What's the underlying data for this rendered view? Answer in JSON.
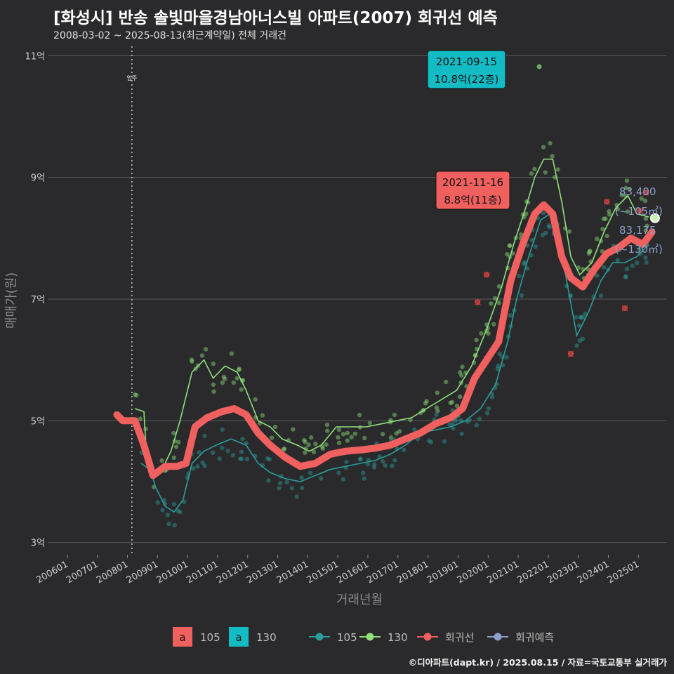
{
  "title": "[화성시] 반송 솔빛마을경남아너스빌 아파트(2007) 회귀선 예측",
  "subtitle": "2008-03-02 ~ 2025-08-13(최근계약일) 전체 거래건",
  "footer": "©디아파트(dapt.kr) / 2025.08.15 / 자료=국토교통부 실거래가",
  "colors": {
    "background": "#2a2a2c",
    "grid": "#5a5a5a",
    "series_105": "#2a9d9a",
    "series_130": "#8ee07a",
    "regression": "#f0605f",
    "prediction": "#8aa0c8",
    "label_105": "#f0605f",
    "label_130": "#13bcc4"
  },
  "chart_data": {
    "type": "line",
    "xlabel": "거래년월",
    "ylabel": "매매가(원)",
    "x_ticks": [
      "200601",
      "200701",
      "200801",
      "200901",
      "201001",
      "201101",
      "201201",
      "201301",
      "201401",
      "201501",
      "201601",
      "201701",
      "201801",
      "201901",
      "202001",
      "202101",
      "202201",
      "202301",
      "202401",
      "202501"
    ],
    "y_ticks": [
      "3억",
      "5억",
      "7억",
      "9억",
      "11억"
    ],
    "y_tick_values": [
      3,
      5,
      7,
      9,
      11
    ],
    "ylim": [
      2.8,
      11.2
    ],
    "xlim": [
      2005.4,
      2026.0
    ],
    "move_in": {
      "year": 2008.2,
      "label": "입주"
    },
    "series": [
      {
        "name": "130",
        "type": "line",
        "points": [
          [
            2008.3,
            5.2
          ],
          [
            2008.6,
            5.15
          ],
          [
            2008.7,
            4.3
          ],
          [
            2008.9,
            4.1
          ],
          [
            2009.2,
            4.2
          ],
          [
            2009.5,
            4.5
          ],
          [
            2009.8,
            5.0
          ],
          [
            2010.2,
            5.8
          ],
          [
            2010.6,
            6.0
          ],
          [
            2010.9,
            5.7
          ],
          [
            2011.3,
            5.9
          ],
          [
            2011.7,
            5.8
          ],
          [
            2012.0,
            5.5
          ],
          [
            2012.4,
            5.0
          ],
          [
            2012.8,
            4.9
          ],
          [
            2013.2,
            4.7
          ],
          [
            2013.7,
            4.6
          ],
          [
            2014.1,
            4.5
          ],
          [
            2014.5,
            4.6
          ],
          [
            2015.0,
            4.9
          ],
          [
            2015.5,
            4.9
          ],
          [
            2016.0,
            4.9
          ],
          [
            2016.5,
            4.95
          ],
          [
            2017.0,
            5.0
          ],
          [
            2017.5,
            5.05
          ],
          [
            2018.0,
            5.2
          ],
          [
            2018.5,
            5.35
          ],
          [
            2019.0,
            5.5
          ],
          [
            2019.5,
            5.9
          ],
          [
            2020.0,
            6.5
          ],
          [
            2020.5,
            7.2
          ],
          [
            2020.9,
            7.9
          ],
          [
            2021.3,
            8.5
          ],
          [
            2021.6,
            9.0
          ],
          [
            2021.9,
            9.3
          ],
          [
            2022.2,
            9.3
          ],
          [
            2022.5,
            8.6
          ],
          [
            2022.8,
            7.7
          ],
          [
            2023.1,
            7.4
          ],
          [
            2023.5,
            7.6
          ],
          [
            2023.9,
            8.1
          ],
          [
            2024.3,
            8.5
          ],
          [
            2024.7,
            8.7
          ],
          [
            2025.0,
            8.4
          ],
          [
            2025.4,
            8.35
          ]
        ]
      },
      {
        "name": "105",
        "type": "line",
        "points": [
          [
            2008.5,
            4.3
          ],
          [
            2008.8,
            4.2
          ],
          [
            2009.0,
            3.9
          ],
          [
            2009.3,
            3.6
          ],
          [
            2009.6,
            3.5
          ],
          [
            2009.9,
            3.7
          ],
          [
            2010.2,
            4.3
          ],
          [
            2010.6,
            4.5
          ],
          [
            2011.0,
            4.6
          ],
          [
            2011.5,
            4.7
          ],
          [
            2012.0,
            4.6
          ],
          [
            2012.4,
            4.3
          ],
          [
            2012.8,
            4.15
          ],
          [
            2013.3,
            4.05
          ],
          [
            2013.8,
            4.0
          ],
          [
            2014.3,
            4.1
          ],
          [
            2014.8,
            4.2
          ],
          [
            2015.3,
            4.25
          ],
          [
            2015.8,
            4.3
          ],
          [
            2016.3,
            4.35
          ],
          [
            2016.8,
            4.45
          ],
          [
            2017.3,
            4.6
          ],
          [
            2017.8,
            4.8
          ],
          [
            2018.3,
            4.85
          ],
          [
            2018.8,
            4.9
          ],
          [
            2019.3,
            5.0
          ],
          [
            2019.8,
            5.2
          ],
          [
            2020.3,
            5.6
          ],
          [
            2020.7,
            6.3
          ],
          [
            2021.0,
            7.0
          ],
          [
            2021.4,
            7.7
          ],
          [
            2021.8,
            8.3
          ],
          [
            2022.1,
            8.4
          ],
          [
            2022.4,
            8.0
          ],
          [
            2022.7,
            7.2
          ],
          [
            2023.0,
            6.4
          ],
          [
            2023.4,
            6.8
          ],
          [
            2023.8,
            7.3
          ],
          [
            2024.2,
            7.6
          ],
          [
            2024.6,
            7.6
          ],
          [
            2025.0,
            7.7
          ],
          [
            2025.4,
            7.9
          ]
        ]
      },
      {
        "name": "회귀선",
        "type": "line",
        "points": [
          [
            2007.7,
            5.1
          ],
          [
            2007.9,
            5.0
          ],
          [
            2008.3,
            5.0
          ],
          [
            2008.6,
            4.6
          ],
          [
            2008.9,
            4.1
          ],
          [
            2009.3,
            4.25
          ],
          [
            2009.7,
            4.25
          ],
          [
            2010.0,
            4.3
          ],
          [
            2010.3,
            4.9
          ],
          [
            2010.7,
            5.05
          ],
          [
            2011.2,
            5.15
          ],
          [
            2011.6,
            5.2
          ],
          [
            2012.0,
            5.1
          ],
          [
            2012.4,
            4.8
          ],
          [
            2012.8,
            4.6
          ],
          [
            2013.3,
            4.4
          ],
          [
            2013.8,
            4.25
          ],
          [
            2014.3,
            4.3
          ],
          [
            2014.8,
            4.45
          ],
          [
            2015.3,
            4.5
          ],
          [
            2015.8,
            4.52
          ],
          [
            2016.3,
            4.55
          ],
          [
            2016.8,
            4.6
          ],
          [
            2017.3,
            4.7
          ],
          [
            2017.8,
            4.8
          ],
          [
            2018.3,
            4.95
          ],
          [
            2018.8,
            5.05
          ],
          [
            2019.2,
            5.2
          ],
          [
            2019.6,
            5.7
          ],
          [
            2020.0,
            6.0
          ],
          [
            2020.4,
            6.3
          ],
          [
            2020.8,
            7.3
          ],
          [
            2021.2,
            7.9
          ],
          [
            2021.6,
            8.4
          ],
          [
            2021.9,
            8.55
          ],
          [
            2022.2,
            8.4
          ],
          [
            2022.5,
            7.7
          ],
          [
            2022.8,
            7.35
          ],
          [
            2023.2,
            7.2
          ],
          [
            2023.6,
            7.5
          ],
          [
            2024.0,
            7.75
          ],
          [
            2024.4,
            7.85
          ],
          [
            2024.8,
            8.0
          ],
          [
            2025.2,
            7.9
          ],
          [
            2025.5,
            8.1
          ]
        ]
      }
    ],
    "outliers": [
      [
        2019.7,
        6.95
      ],
      [
        2020.0,
        7.4
      ],
      [
        2022.8,
        6.1
      ],
      [
        2024.0,
        8.6
      ],
      [
        2024.6,
        6.85
      ],
      [
        2025.1,
        8.45
      ],
      [
        2025.3,
        8.75
      ]
    ],
    "callouts": [
      {
        "date": "2021-09-15",
        "value": "10.8억(22층)",
        "series": "130",
        "x": 2021.7,
        "y": 10.8
      },
      {
        "date": "2021-11-16",
        "value": "8.8억(11층)",
        "series": "105",
        "x": 2021.9,
        "y": 8.8
      }
    ],
    "predictions": [
      {
        "price": "83,400",
        "area": "(~105㎡)",
        "y": 8.34
      },
      {
        "price": "83,175",
        "area": "(~130㎡)",
        "y": 8.32
      }
    ],
    "legend": {
      "placement": "bottom",
      "fill_items": [
        {
          "glyph": "a",
          "label": "105"
        },
        {
          "glyph": "a",
          "label": "130"
        }
      ],
      "line_items": [
        {
          "label": "105"
        },
        {
          "label": "130"
        },
        {
          "label": "회귀선"
        },
        {
          "label": "회귀예측"
        }
      ]
    }
  }
}
